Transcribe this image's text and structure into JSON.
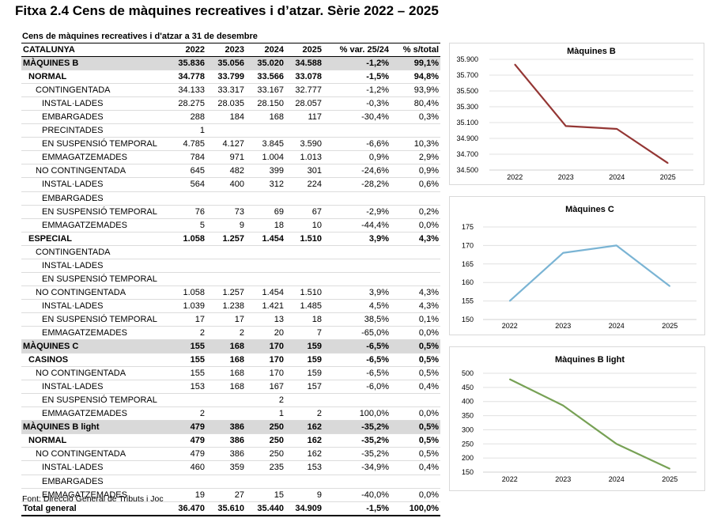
{
  "title": "Fitxa 2.4 Cens de màquines recreatives i d’atzar. Sèrie 2022 – 2025",
  "table": {
    "caption": "Cens de màquines recreatives i d'atzar a 31 de desembre",
    "headers": [
      "CATALUNYA",
      "2022",
      "2023",
      "2024",
      "2025",
      "% var. 25/24",
      "% s/total"
    ],
    "rows": [
      {
        "label": "MÀQUINES B",
        "level": 0,
        "style": "group",
        "values": [
          "35.836",
          "35.056",
          "35.020",
          "34.588",
          "-1,2%",
          "99,1%"
        ]
      },
      {
        "label": "NORMAL",
        "level": 1,
        "style": "bold",
        "values": [
          "34.778",
          "33.799",
          "33.566",
          "33.078",
          "-1,5%",
          "94,8%"
        ]
      },
      {
        "label": "CONTINGENTADA",
        "level": 2,
        "style": "normal",
        "values": [
          "34.133",
          "33.317",
          "33.167",
          "32.777",
          "-1,2%",
          "93,9%"
        ]
      },
      {
        "label": "INSTAL·LADES",
        "level": 3,
        "style": "normal",
        "values": [
          "28.275",
          "28.035",
          "28.150",
          "28.057",
          "-0,3%",
          "80,4%"
        ]
      },
      {
        "label": "EMBARGADES",
        "level": 3,
        "style": "normal",
        "values": [
          "288",
          "184",
          "168",
          "117",
          "-30,4%",
          "0,3%"
        ]
      },
      {
        "label": "PRECINTADES",
        "level": 3,
        "style": "normal",
        "values": [
          "1",
          "",
          "",
          "",
          "",
          ""
        ]
      },
      {
        "label": "EN SUSPENSIÓ TEMPORAL",
        "level": 3,
        "style": "normal",
        "values": [
          "4.785",
          "4.127",
          "3.845",
          "3.590",
          "-6,6%",
          "10,3%"
        ]
      },
      {
        "label": "EMMAGATZEMADES",
        "level": 3,
        "style": "normal",
        "values": [
          "784",
          "971",
          "1.004",
          "1.013",
          "0,9%",
          "2,9%"
        ]
      },
      {
        "label": "NO CONTINGENTADA",
        "level": 2,
        "style": "normal",
        "values": [
          "645",
          "482",
          "399",
          "301",
          "-24,6%",
          "0,9%"
        ]
      },
      {
        "label": "INSTAL·LADES",
        "level": 3,
        "style": "normal",
        "values": [
          "564",
          "400",
          "312",
          "224",
          "-28,2%",
          "0,6%"
        ]
      },
      {
        "label": "EMBARGADES",
        "level": 3,
        "style": "normal",
        "values": [
          "",
          "",
          "",
          "",
          "",
          ""
        ]
      },
      {
        "label": "EN SUSPENSIÓ TEMPORAL",
        "level": 3,
        "style": "normal",
        "values": [
          "76",
          "73",
          "69",
          "67",
          "-2,9%",
          "0,2%"
        ]
      },
      {
        "label": "EMMAGATZEMADES",
        "level": 3,
        "style": "normal",
        "values": [
          "5",
          "9",
          "18",
          "10",
          "-44,4%",
          "0,0%"
        ]
      },
      {
        "label": "ESPECIAL",
        "level": 1,
        "style": "bold",
        "values": [
          "1.058",
          "1.257",
          "1.454",
          "1.510",
          "3,9%",
          "4,3%"
        ]
      },
      {
        "label": "CONTINGENTADA",
        "level": 2,
        "style": "normal",
        "values": [
          "",
          "",
          "",
          "",
          "",
          ""
        ]
      },
      {
        "label": "INSTAL·LADES",
        "level": 3,
        "style": "normal",
        "values": [
          "",
          "",
          "",
          "",
          "",
          ""
        ]
      },
      {
        "label": "EN SUSPENSIÓ TEMPORAL",
        "level": 3,
        "style": "normal",
        "values": [
          "",
          "",
          "",
          "",
          "",
          ""
        ]
      },
      {
        "label": "NO CONTINGENTADA",
        "level": 2,
        "style": "normal",
        "values": [
          "1.058",
          "1.257",
          "1.454",
          "1.510",
          "3,9%",
          "4,3%"
        ]
      },
      {
        "label": "INSTAL·LADES",
        "level": 3,
        "style": "normal",
        "values": [
          "1.039",
          "1.238",
          "1.421",
          "1.485",
          "4,5%",
          "4,3%"
        ]
      },
      {
        "label": "EN SUSPENSIÓ TEMPORAL",
        "level": 3,
        "style": "normal",
        "values": [
          "17",
          "17",
          "13",
          "18",
          "38,5%",
          "0,1%"
        ]
      },
      {
        "label": "EMMAGATZEMADES",
        "level": 3,
        "style": "normal",
        "values": [
          "2",
          "2",
          "20",
          "7",
          "-65,0%",
          "0,0%"
        ]
      },
      {
        "label": "MÀQUINES C",
        "level": 0,
        "style": "group",
        "values": [
          "155",
          "168",
          "170",
          "159",
          "-6,5%",
          "0,5%"
        ]
      },
      {
        "label": "CASINOS",
        "level": 1,
        "style": "bold",
        "values": [
          "155",
          "168",
          "170",
          "159",
          "-6,5%",
          "0,5%"
        ]
      },
      {
        "label": "NO CONTINGENTADA",
        "level": 2,
        "style": "normal",
        "values": [
          "155",
          "168",
          "170",
          "159",
          "-6,5%",
          "0,5%"
        ]
      },
      {
        "label": "INSTAL·LADES",
        "level": 3,
        "style": "normal",
        "values": [
          "153",
          "168",
          "167",
          "157",
          "-6,0%",
          "0,4%"
        ]
      },
      {
        "label": "EN SUSPENSIÓ TEMPORAL",
        "level": 3,
        "style": "normal",
        "values": [
          "",
          "",
          "2",
          "",
          "",
          ""
        ]
      },
      {
        "label": "EMMAGATZEMADES",
        "level": 3,
        "style": "normal",
        "values": [
          "2",
          "",
          "1",
          "2",
          "100,0%",
          "0,0%"
        ]
      },
      {
        "label": "MÀQUINES B light",
        "level": 0,
        "style": "group",
        "values": [
          "479",
          "386",
          "250",
          "162",
          "-35,2%",
          "0,5%"
        ]
      },
      {
        "label": "NORMAL",
        "level": 1,
        "style": "bold",
        "values": [
          "479",
          "386",
          "250",
          "162",
          "-35,2%",
          "0,5%"
        ]
      },
      {
        "label": "NO CONTINGENTADA",
        "level": 2,
        "style": "normal",
        "values": [
          "479",
          "386",
          "250",
          "162",
          "-35,2%",
          "0,5%"
        ]
      },
      {
        "label": "INSTAL·LADES",
        "level": 3,
        "style": "normal",
        "values": [
          "460",
          "359",
          "235",
          "153",
          "-34,9%",
          "0,4%"
        ]
      },
      {
        "label": "EMBARGADES",
        "level": 3,
        "style": "normal",
        "values": [
          "",
          "",
          "",
          "",
          "",
          ""
        ]
      },
      {
        "label": "EMMAGATZEMADES",
        "level": 3,
        "style": "normal",
        "values": [
          "19",
          "27",
          "15",
          "9",
          "-40,0%",
          "0,0%"
        ]
      },
      {
        "label": "Total general",
        "level": 0,
        "style": "total",
        "values": [
          "36.470",
          "35.610",
          "35.440",
          "34.909",
          "-1,5%",
          "100,0%"
        ]
      }
    ]
  },
  "source": "Font: Direcció General de Tributs i Joc",
  "chart_data": [
    {
      "type": "line",
      "title": "Màquines  B",
      "categories": [
        "2022",
        "2023",
        "2024",
        "2025"
      ],
      "series": [
        {
          "name": "Màquines B",
          "values": [
            35836,
            35056,
            35020,
            34588
          ],
          "color": "#943634"
        }
      ],
      "ylim": [
        34500,
        35900
      ],
      "yticks": [
        34500,
        34700,
        34900,
        35100,
        35300,
        35500,
        35700,
        35900
      ],
      "ytick_labels": [
        "34.500",
        "34.700",
        "34.900",
        "35.100",
        "35.300",
        "35.500",
        "35.700",
        "35.900"
      ],
      "xlabel": "",
      "ylabel": "",
      "grid": true,
      "legend": "none"
    },
    {
      "type": "line",
      "title": "Màquines  C",
      "categories": [
        "2022",
        "2023",
        "2024",
        "2025"
      ],
      "series": [
        {
          "name": "Màquines C",
          "values": [
            155,
            168,
            170,
            159
          ],
          "color": "#7ab4d4"
        }
      ],
      "ylim": [
        150,
        175
      ],
      "yticks": [
        150,
        155,
        160,
        165,
        170,
        175
      ],
      "ytick_labels": [
        "150",
        "155",
        "160",
        "165",
        "170",
        "175"
      ],
      "xlabel": "",
      "ylabel": "",
      "grid": true,
      "legend": "none"
    },
    {
      "type": "line",
      "title": "Màquines B light",
      "categories": [
        "2022",
        "2023",
        "2024",
        "2025"
      ],
      "series": [
        {
          "name": "Màquines B light",
          "values": [
            479,
            386,
            250,
            162
          ],
          "color": "#77a155"
        }
      ],
      "ylim": [
        150,
        500
      ],
      "yticks": [
        150,
        200,
        250,
        300,
        350,
        400,
        450,
        500
      ],
      "ytick_labels": [
        "150",
        "200",
        "250",
        "300",
        "350",
        "400",
        "450",
        "500"
      ],
      "xlabel": "",
      "ylabel": "",
      "grid": true,
      "legend": "none"
    }
  ]
}
